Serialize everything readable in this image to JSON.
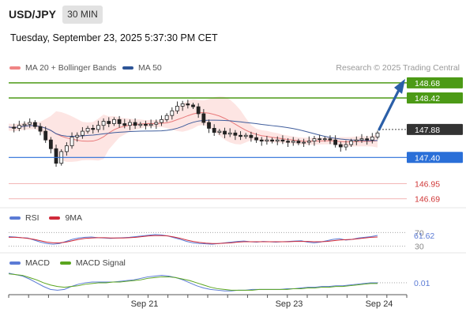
{
  "header": {
    "symbol": "USD/JPY",
    "timeframe": "30 MIN",
    "datetime": "Tuesday, September 23, 2025 5:37:30 PM CET"
  },
  "legend": {
    "item1": "MA 20 + Bollinger Bands",
    "item2": "MA 50",
    "credit": "Research © 2025 Trading Central"
  },
  "colors": {
    "green": "#4c9a16",
    "blue": "#2a6fd8",
    "red": "#d03838",
    "ma20": "#e8797a",
    "ma50": "#3f5d9c",
    "band_fill": "#fde0de",
    "rsi": "#5b7bd5",
    "rsi_ma": "#d02a3a",
    "macd": "#5b7bd5",
    "macd_signal": "#5aa51e"
  },
  "chart_data": [
    {
      "type": "candlestick",
      "title": "USD/JPY 30 MIN",
      "ylim": [
        146.55,
        148.8
      ],
      "x_ticks": [
        "Sep 21",
        "Sep 23",
        "Sep 24"
      ],
      "levels": [
        {
          "value": 148.68,
          "label": "148.68",
          "kind": "resistance"
        },
        {
          "value": 148.42,
          "label": "148.42",
          "kind": "resistance"
        },
        {
          "value": 147.88,
          "label": "147.88",
          "kind": "last"
        },
        {
          "value": 147.4,
          "label": "147.40",
          "kind": "pivot"
        },
        {
          "value": 146.95,
          "label": "146.95",
          "kind": "support"
        },
        {
          "value": 146.69,
          "label": "146.69",
          "kind": "support"
        }
      ],
      "price_path": [
        147.92,
        147.9,
        147.95,
        147.97,
        148.0,
        147.93,
        147.85,
        147.7,
        147.55,
        147.3,
        147.5,
        147.6,
        147.75,
        147.78,
        147.85,
        147.9,
        147.88,
        147.95,
        148.02,
        147.98,
        148.05,
        147.98,
        147.95,
        148.0,
        147.95,
        147.97,
        147.95,
        147.97,
        148.0,
        148.05,
        148.12,
        148.2,
        148.28,
        148.32,
        148.3,
        148.27,
        148.15,
        148.0,
        147.9,
        147.83,
        147.85,
        147.8,
        147.82,
        147.78,
        147.76,
        147.78,
        147.74,
        147.7,
        147.68,
        147.7,
        147.68,
        147.7,
        147.68,
        147.66,
        147.68,
        147.65,
        147.66,
        147.68,
        147.72,
        147.71,
        147.72,
        147.7,
        147.62,
        147.58,
        147.62,
        147.68,
        147.7,
        147.72,
        147.7,
        147.75,
        147.82
      ],
      "projection": {
        "from": 147.88,
        "to": 148.68
      }
    },
    {
      "type": "line",
      "title": "RSI",
      "series": [
        {
          "name": "RSI",
          "values": [
            58,
            57,
            55,
            54,
            48,
            42,
            38,
            36,
            38,
            44,
            50,
            54,
            56,
            57,
            55,
            54,
            53,
            54,
            55,
            56,
            58,
            60,
            62,
            64,
            63,
            60,
            55,
            50,
            44,
            40,
            38,
            37,
            36,
            38,
            40,
            42,
            44,
            45,
            43,
            42,
            44,
            43,
            42,
            43,
            44,
            45,
            46,
            42,
            40,
            42,
            46,
            50,
            52,
            48,
            50,
            54,
            56,
            58,
            61.62
          ]
        },
        {
          "name": "9MA",
          "values": [
            56,
            56,
            55,
            53,
            50,
            46,
            42,
            40,
            40,
            42,
            46,
            50,
            53,
            54,
            55,
            55,
            54,
            54,
            54,
            55,
            56,
            58,
            60,
            61,
            61,
            60,
            57,
            53,
            48,
            44,
            41,
            39,
            38,
            38,
            39,
            40,
            42,
            43,
            43,
            43,
            43,
            43,
            43,
            43,
            43,
            44,
            44,
            44,
            43,
            43,
            44,
            46,
            48,
            49,
            50,
            52,
            54,
            56,
            57
          ]
        }
      ],
      "ylim": [
        20,
        80
      ],
      "ticks": [
        "70",
        "30"
      ],
      "last_value_label": "61.62"
    },
    {
      "type": "line",
      "title": "MACD",
      "series": [
        {
          "name": "MACD",
          "values": [
            0.14,
            0.12,
            0.1,
            0.06,
            0.01,
            -0.04,
            -0.08,
            -0.09,
            -0.08,
            -0.04,
            -0.01,
            0.01,
            0.02,
            0.02,
            0.02,
            0.02,
            0.03,
            0.04,
            0.05,
            0.07,
            0.09,
            0.1,
            0.11,
            0.1,
            0.08,
            0.05,
            0.01,
            -0.03,
            -0.06,
            -0.08,
            -0.09,
            -0.1,
            -0.1,
            -0.09,
            -0.09,
            -0.08,
            -0.08,
            -0.08,
            -0.08,
            -0.08,
            -0.07,
            -0.07,
            -0.06,
            -0.05,
            -0.05,
            -0.04,
            -0.04,
            -0.03,
            -0.03,
            -0.02,
            -0.01,
            0.0,
            0.01,
            0.01
          ]
        },
        {
          "name": "MACD Signal",
          "values": [
            0.13,
            0.12,
            0.11,
            0.08,
            0.05,
            0.01,
            -0.02,
            -0.04,
            -0.05,
            -0.04,
            -0.03,
            -0.01,
            0.0,
            0.01,
            0.01,
            0.02,
            0.02,
            0.03,
            0.04,
            0.05,
            0.07,
            0.08,
            0.09,
            0.09,
            0.08,
            0.06,
            0.04,
            0.01,
            -0.02,
            -0.05,
            -0.07,
            -0.08,
            -0.09,
            -0.09,
            -0.09,
            -0.09,
            -0.08,
            -0.08,
            -0.08,
            -0.08,
            -0.08,
            -0.07,
            -0.07,
            -0.06,
            -0.06,
            -0.05,
            -0.05,
            -0.04,
            -0.04,
            -0.03,
            -0.02,
            -0.01,
            0.0,
            0.0
          ]
        }
      ],
      "ylim": [
        -0.14,
        0.18
      ],
      "last_value_label": "0.01"
    }
  ],
  "sub": {
    "rsi_label": "RSI",
    "rsi_ma_label": "9MA",
    "macd_label": "MACD",
    "macd_signal_label": "MACD Signal",
    "rsi_tick_70": "70",
    "rsi_tick_30": "30"
  }
}
